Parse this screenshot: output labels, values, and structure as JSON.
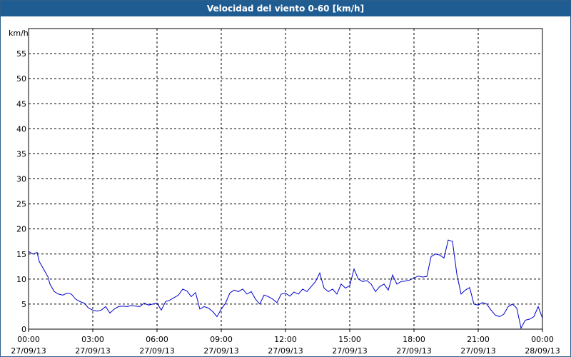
{
  "colors": {
    "titlebar": "#1f5c91",
    "series": "#0000cc",
    "grid": "#000000"
  },
  "chart_data": {
    "type": "line",
    "title": "Velocidad del viento 0-60 [km/h]",
    "ylabel": "km/h",
    "xlabel": "",
    "ylim": [
      0,
      60
    ],
    "yticks": [
      0,
      5,
      10,
      15,
      20,
      25,
      30,
      35,
      40,
      45,
      50,
      55
    ],
    "xlim_hours": [
      0,
      24
    ],
    "grid": true,
    "legend": "none",
    "xticks": [
      {
        "time": "00:00",
        "date": "27/09/13"
      },
      {
        "time": "03:00",
        "date": "27/09/13"
      },
      {
        "time": "06:00",
        "date": "27/09/13"
      },
      {
        "time": "09:00",
        "date": "27/09/13"
      },
      {
        "time": "12:00",
        "date": "27/09/13"
      },
      {
        "time": "15:00",
        "date": "27/09/13"
      },
      {
        "time": "18:00",
        "date": "27/09/13"
      },
      {
        "time": "21:00",
        "date": "27/09/13"
      },
      {
        "time": "00:00",
        "date": "28/09/13"
      }
    ],
    "series": [
      {
        "x_hours": [
          0,
          0.2,
          0.4,
          0.5,
          0.7,
          0.9,
          1.0,
          1.2,
          1.4,
          1.6,
          1.8,
          2.0,
          2.2,
          2.4,
          2.6,
          2.8,
          3.0,
          3.2,
          3.4,
          3.6,
          3.8,
          4.0,
          4.2,
          4.4,
          4.6,
          4.8,
          5.0,
          5.2,
          5.4,
          5.6,
          5.8,
          6.0,
          6.2,
          6.4,
          6.6,
          6.8,
          7.0,
          7.2,
          7.4,
          7.6,
          7.8,
          8.0,
          8.2,
          8.4,
          8.6,
          8.8,
          9.0,
          9.2,
          9.4,
          9.6,
          9.8,
          10.0,
          10.2,
          10.4,
          10.6,
          10.8,
          11.0,
          11.2,
          11.4,
          11.6,
          11.8,
          12.0,
          12.2,
          12.4,
          12.6,
          12.8,
          13.0,
          13.2,
          13.4,
          13.6,
          13.8,
          14.0,
          14.2,
          14.4,
          14.6,
          14.8,
          15.0,
          15.2,
          15.4,
          15.6,
          15.8,
          16.0,
          16.2,
          16.4,
          16.6,
          16.8,
          17.0,
          17.2,
          17.4,
          17.6,
          17.8,
          18.0,
          18.2,
          18.4,
          18.6,
          18.8,
          19.0,
          19.2,
          19.4,
          19.6,
          19.8,
          20.0,
          20.2,
          20.4,
          20.6,
          20.8,
          21.0,
          21.2,
          21.4,
          21.6,
          21.8,
          22.0,
          22.2,
          22.4,
          22.6,
          22.8,
          23.0,
          23.2,
          23.4,
          23.6,
          23.8,
          24.0
        ],
        "values": [
          15.5,
          15.0,
          15.3,
          13.5,
          12.0,
          10.5,
          9.0,
          7.5,
          7.0,
          6.8,
          7.2,
          7.0,
          6.0,
          5.5,
          5.2,
          4.2,
          3.8,
          3.6,
          3.8,
          4.5,
          3.2,
          4.0,
          4.5,
          4.6,
          4.5,
          4.7,
          4.6,
          4.5,
          5.2,
          4.8,
          5.0,
          5.2,
          3.8,
          5.5,
          5.8,
          6.3,
          6.8,
          8.0,
          7.6,
          6.5,
          7.3,
          4.0,
          4.5,
          4.2,
          3.5,
          2.5,
          4.0,
          5.2,
          7.2,
          7.8,
          7.5,
          8.0,
          7.0,
          7.5,
          6.0,
          5.0,
          6.8,
          6.5,
          6.0,
          5.3,
          7.0,
          7.2,
          6.6,
          7.4,
          7.0,
          8.0,
          7.5,
          8.5,
          9.5,
          11.2,
          8.2,
          7.5,
          8.0,
          7.0,
          9.0,
          8.2,
          8.7,
          12.0,
          10.0,
          9.5,
          9.7,
          9.0,
          7.5,
          8.5,
          9.0,
          7.8,
          10.8,
          9.0,
          9.5,
          9.6,
          9.8,
          10.2,
          10.6,
          10.4,
          10.5,
          14.5,
          15.0,
          14.8,
          14.2,
          17.8,
          17.5,
          11.0,
          7.0,
          7.8,
          8.3,
          5.0,
          4.8,
          5.3,
          5.0,
          3.8,
          2.8,
          2.5,
          3.0,
          4.5,
          5.0,
          4.2,
          0.2,
          1.8,
          2.0,
          2.5,
          4.5,
          2.2
        ]
      }
    ]
  }
}
